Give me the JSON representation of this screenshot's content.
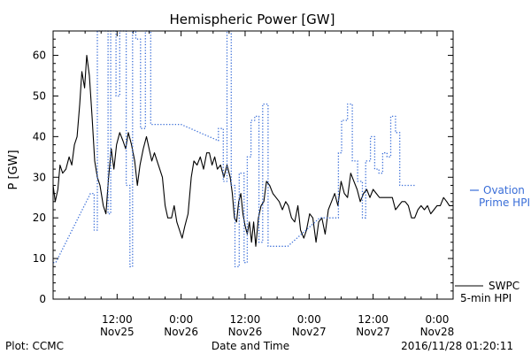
{
  "chart_data": {
    "type": "line",
    "title": "Hemispheric Power [GW]",
    "xlabel": "Date and Time",
    "ylabel": "P [GW]",
    "ylim": [
      0,
      66
    ],
    "yticks": [
      0,
      10,
      20,
      30,
      40,
      50,
      60
    ],
    "xlim_hours": [
      0,
      75
    ],
    "xticks": [
      {
        "h": 12,
        "time": "12:00",
        "date": "Nov25"
      },
      {
        "h": 24,
        "time": "0:00",
        "date": "Nov26"
      },
      {
        "h": 36,
        "time": "12:00",
        "date": "Nov26"
      },
      {
        "h": 48,
        "time": "0:00",
        "date": "Nov27"
      },
      {
        "h": 60,
        "time": "12:00",
        "date": "Nov27"
      },
      {
        "h": 72,
        "time": "0:00",
        "date": "Nov28"
      }
    ],
    "series": [
      {
        "name": "SWPC 5-min HPI",
        "color": "#000000",
        "style": "solid",
        "points": [
          [
            0,
            28
          ],
          [
            0.4,
            24
          ],
          [
            0.9,
            27
          ],
          [
            1.3,
            33
          ],
          [
            1.8,
            31
          ],
          [
            2.4,
            32
          ],
          [
            3,
            35
          ],
          [
            3.5,
            33
          ],
          [
            4,
            38
          ],
          [
            4.5,
            40
          ],
          [
            5,
            48
          ],
          [
            5.4,
            56
          ],
          [
            5.9,
            52
          ],
          [
            6.3,
            60
          ],
          [
            6.8,
            55
          ],
          [
            7.3,
            45
          ],
          [
            7.8,
            34
          ],
          [
            8.3,
            30
          ],
          [
            8.8,
            28
          ],
          [
            9.4,
            23
          ],
          [
            9.9,
            21
          ],
          [
            10.4,
            30
          ],
          [
            10.9,
            37
          ],
          [
            11.4,
            32
          ],
          [
            11.9,
            38
          ],
          [
            12.5,
            41
          ],
          [
            13.1,
            39
          ],
          [
            13.6,
            37
          ],
          [
            14.1,
            41
          ],
          [
            14.7,
            38
          ],
          [
            15.3,
            34
          ],
          [
            15.8,
            28
          ],
          [
            16.3,
            33
          ],
          [
            16.9,
            37
          ],
          [
            17.5,
            40
          ],
          [
            18,
            37
          ],
          [
            18.5,
            34
          ],
          [
            19,
            36
          ],
          [
            19.5,
            34
          ],
          [
            20,
            32
          ],
          [
            20.5,
            30
          ],
          [
            21,
            23
          ],
          [
            21.5,
            20
          ],
          [
            22.2,
            20
          ],
          [
            22.7,
            23
          ],
          [
            23.2,
            19
          ],
          [
            23.7,
            17
          ],
          [
            24.2,
            15
          ],
          [
            24.7,
            18
          ],
          [
            25.3,
            21
          ],
          [
            25.9,
            30
          ],
          [
            26.4,
            34
          ],
          [
            27,
            33
          ],
          [
            27.6,
            35
          ],
          [
            28.2,
            32
          ],
          [
            28.8,
            36
          ],
          [
            29.3,
            36
          ],
          [
            29.8,
            33
          ],
          [
            30.3,
            35
          ],
          [
            30.8,
            32
          ],
          [
            31.4,
            33
          ],
          [
            32,
            30
          ],
          [
            32.6,
            33
          ],
          [
            33.2,
            30
          ],
          [
            33.6,
            26
          ],
          [
            34,
            20
          ],
          [
            34.4,
            19
          ],
          [
            34.8,
            24
          ],
          [
            35.2,
            26
          ],
          [
            35.6,
            21
          ],
          [
            36,
            18
          ],
          [
            36.4,
            16
          ],
          [
            36.8,
            19
          ],
          [
            37.2,
            14
          ],
          [
            37.6,
            19
          ],
          [
            38,
            13
          ],
          [
            38.5,
            20
          ],
          [
            39,
            23
          ],
          [
            39.5,
            24
          ],
          [
            40,
            29
          ],
          [
            40.6,
            28
          ],
          [
            41.2,
            26
          ],
          [
            41.8,
            25
          ],
          [
            42.4,
            24
          ],
          [
            43,
            22
          ],
          [
            43.6,
            24
          ],
          [
            44.1,
            23
          ],
          [
            44.7,
            20
          ],
          [
            45.3,
            19
          ],
          [
            45.9,
            23
          ],
          [
            46.4,
            17
          ],
          [
            47,
            15
          ],
          [
            47.5,
            17
          ],
          [
            48.1,
            21
          ],
          [
            48.7,
            20
          ],
          [
            49.3,
            14
          ],
          [
            49.8,
            19
          ],
          [
            50.4,
            20
          ],
          [
            51,
            16
          ],
          [
            51.6,
            22
          ],
          [
            52.2,
            24
          ],
          [
            52.8,
            26
          ],
          [
            53.4,
            23
          ],
          [
            54,
            29
          ],
          [
            54.6,
            26
          ],
          [
            55.2,
            25
          ],
          [
            55.8,
            31
          ],
          [
            56.4,
            29
          ],
          [
            57,
            27
          ],
          [
            57.6,
            24
          ],
          [
            58.2,
            26
          ],
          [
            58.8,
            27
          ],
          [
            59.4,
            25
          ],
          [
            60,
            27
          ],
          [
            60.6,
            26
          ],
          [
            61.2,
            25
          ],
          [
            61.8,
            25
          ],
          [
            62.4,
            25
          ],
          [
            63,
            25
          ],
          [
            63.6,
            25
          ],
          [
            64.2,
            22
          ],
          [
            64.8,
            23
          ],
          [
            65.4,
            24
          ],
          [
            66,
            24
          ],
          [
            66.6,
            23
          ],
          [
            67.2,
            20
          ],
          [
            67.8,
            20
          ],
          [
            68.4,
            22
          ],
          [
            69,
            23
          ],
          [
            69.6,
            22
          ],
          [
            70.2,
            23
          ],
          [
            70.8,
            21
          ],
          [
            71.4,
            22
          ],
          [
            72,
            23
          ],
          [
            72.6,
            23
          ],
          [
            73.2,
            25
          ],
          [
            73.8,
            24
          ],
          [
            74.3,
            23
          ],
          [
            75,
            23
          ]
        ]
      },
      {
        "name": "Ovation Prime HPI",
        "color": "#3a6ed8",
        "style": "dotted",
        "points": [
          [
            0,
            9
          ],
          [
            0.5,
            9
          ],
          [
            7,
            26
          ],
          [
            7.7,
            26
          ],
          [
            7.7,
            17
          ],
          [
            8.3,
            17
          ],
          [
            8.3,
            66
          ],
          [
            10.3,
            66
          ],
          [
            10.3,
            21
          ],
          [
            10.8,
            21
          ],
          [
            10.8,
            66
          ],
          [
            11.8,
            66
          ],
          [
            11.8,
            50
          ],
          [
            12.5,
            50
          ],
          [
            12.5,
            66
          ],
          [
            13.7,
            66
          ],
          [
            13.7,
            28
          ],
          [
            14.4,
            28
          ],
          [
            14.4,
            8
          ],
          [
            14.9,
            8
          ],
          [
            14.9,
            66
          ],
          [
            15.5,
            66
          ],
          [
            15.5,
            64
          ],
          [
            16.4,
            64
          ],
          [
            16.4,
            42
          ],
          [
            17.3,
            42
          ],
          [
            17.3,
            66
          ],
          [
            18.3,
            66
          ],
          [
            18.3,
            43
          ],
          [
            24,
            43
          ],
          [
            31,
            39
          ],
          [
            31,
            42
          ],
          [
            31.9,
            42
          ],
          [
            31.9,
            29
          ],
          [
            32.6,
            29
          ],
          [
            32.6,
            66
          ],
          [
            33.4,
            66
          ],
          [
            33.4,
            28
          ],
          [
            34.1,
            28
          ],
          [
            34.1,
            8
          ],
          [
            34.9,
            8
          ],
          [
            34.9,
            31
          ],
          [
            35.8,
            31
          ],
          [
            35.8,
            9
          ],
          [
            36.4,
            9
          ],
          [
            36.4,
            35
          ],
          [
            37.1,
            35
          ],
          [
            37.1,
            44
          ],
          [
            37.8,
            44
          ],
          [
            37.8,
            45
          ],
          [
            38.6,
            45
          ],
          [
            38.6,
            14
          ],
          [
            39.3,
            14
          ],
          [
            39.3,
            48
          ],
          [
            40.3,
            48
          ],
          [
            40.3,
            13
          ],
          [
            44,
            13
          ],
          [
            50,
            20
          ],
          [
            53.5,
            20
          ],
          [
            53.5,
            36
          ],
          [
            54.1,
            36
          ],
          [
            54.1,
            44
          ],
          [
            55.2,
            44
          ],
          [
            55.2,
            48
          ],
          [
            56.1,
            48
          ],
          [
            56.1,
            34
          ],
          [
            57.1,
            34
          ],
          [
            57.1,
            29
          ],
          [
            58,
            29
          ],
          [
            58,
            20
          ],
          [
            58.6,
            20
          ],
          [
            58.6,
            34
          ],
          [
            59.5,
            34
          ],
          [
            59.5,
            40
          ],
          [
            60.3,
            40
          ],
          [
            60.3,
            32
          ],
          [
            61.1,
            32
          ],
          [
            61.1,
            31
          ],
          [
            61.8,
            31
          ],
          [
            61.8,
            36
          ],
          [
            62.6,
            36
          ],
          [
            62.6,
            35
          ],
          [
            63.3,
            35
          ],
          [
            63.3,
            45
          ],
          [
            64.2,
            45
          ],
          [
            64.2,
            41
          ],
          [
            65,
            41
          ],
          [
            65,
            28
          ],
          [
            68,
            28
          ]
        ]
      }
    ],
    "legend": {
      "placement": "right",
      "ovation_line1": "Ovation",
      "ovation_line2": "Prime HPI",
      "swpc_line1": "SWPC",
      "swpc_line2": "5-min HPI"
    },
    "grid": false
  },
  "footer": {
    "plot_credit": "Plot: CCMC",
    "timestamp": "2016/11/28 01:20:11"
  }
}
